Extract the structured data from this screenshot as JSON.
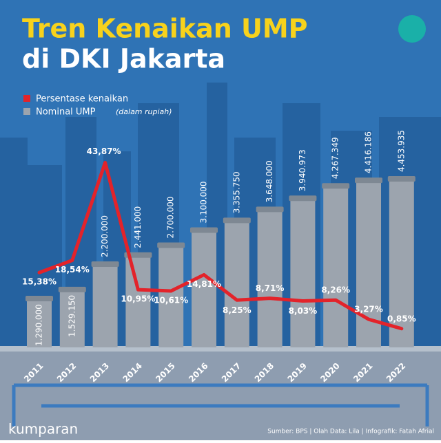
{
  "chart_data": {
    "type": "bar-line",
    "title": "Tren Kenaikan UMP",
    "subtitle": "di DKI Jakarta",
    "categories": [
      "2011",
      "2012",
      "2013",
      "2014",
      "2015",
      "2016",
      "2017",
      "2018",
      "2019",
      "2020",
      "2021",
      "2022"
    ],
    "series": [
      {
        "name": "Persentase kenaikan",
        "type": "line",
        "axis": "y2",
        "color": "#e3232a",
        "values": [
          15.38,
          18.54,
          43.87,
          10.95,
          10.61,
          14.81,
          8.25,
          8.71,
          8.03,
          8.26,
          3.27,
          0.85
        ],
        "value_labels": [
          "15,38%",
          "18,54%",
          "43,87%",
          "10,95%",
          "10,61%",
          "14,81%",
          "8,25%",
          "8,71%",
          "8,03%",
          "8,26%",
          "3,27%",
          "0,85%"
        ]
      },
      {
        "name": "Nominal UMP",
        "type": "bar",
        "color": "#9ca4ae",
        "unit": "(dalam rupiah)",
        "values": [
          1290000,
          1529150,
          2200000,
          2441000,
          2700000,
          3100000,
          3355750,
          3648000,
          3940973,
          4267349,
          4416186,
          4453935
        ],
        "value_labels": [
          "1.290.000",
          "1.529.150",
          "2.200.000",
          "2.441.000",
          "2.700.000",
          "3.100.000",
          "3.355.750",
          "3.648.000",
          "3.940.973",
          "4.267.349",
          "4.416.186",
          "4.453.935"
        ]
      }
    ],
    "ylim": [
      0,
      5000000
    ],
    "y2lim": [
      -4,
      45
    ],
    "brand": "kumparan",
    "source": "Sumber: BPS | Olah Data: Lila | Infografik: Fatah Afrial"
  }
}
